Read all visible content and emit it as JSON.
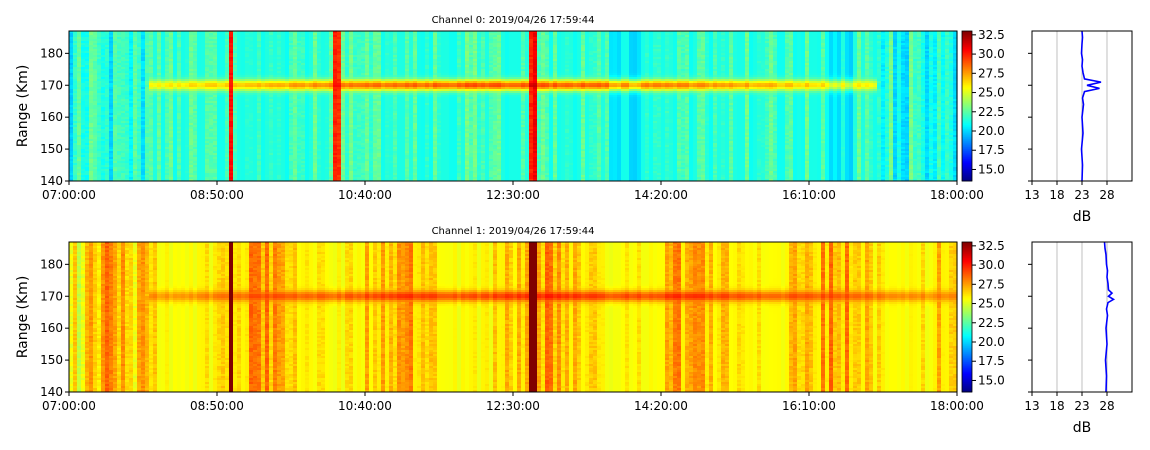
{
  "chart_data": [
    {
      "type": "heatmap",
      "title": "Channel 0: 2019/04/26 17:59:44",
      "xlabel": "",
      "ylabel": "Range (Km)",
      "x_ticks": [
        "07:00:00",
        "08:50:00",
        "10:40:00",
        "12:30:00",
        "14:20:00",
        "16:10:00",
        "18:00:00"
      ],
      "xlim": [
        "07:00:00",
        "18:00:00"
      ],
      "ylim": [
        140,
        187
      ],
      "y_ticks": [
        140,
        150,
        160,
        170,
        180
      ],
      "colorbar": {
        "ticks": [
          "15.0",
          "17.5",
          "20.0",
          "22.5",
          "25.0",
          "27.5",
          "30.0",
          "32.5"
        ],
        "range": [
          13.5,
          33.0
        ],
        "colormap": "jet"
      },
      "background_level_db": 21.5,
      "echo_layer": {
        "range_km": 170,
        "peak_db": 29,
        "time_span": [
          "08:00:00",
          "17:00:00"
        ]
      },
      "strong_columns": [
        "09:00:00",
        "10:20:00",
        "12:45:00"
      ],
      "weak_columns": [
        "13:45:00",
        "14:00:00",
        "16:30:00",
        "16:40:00"
      ]
    },
    {
      "type": "line",
      "title": "",
      "xlabel": "dB",
      "ylabel": "",
      "x_ticks": [
        13,
        18,
        23,
        28
      ],
      "xlim": [
        13,
        33
      ],
      "ylim": [
        140,
        187
      ],
      "grid": true,
      "series": [
        {
          "color": "#0000ff",
          "x": [
            23.0,
            23.1,
            22.9,
            23.2,
            23.0,
            23.3,
            23.1,
            23.5,
            26.5,
            24.0,
            26.8,
            23.5,
            23.2,
            23.0,
            23.1,
            22.9,
            23.0,
            23.1,
            23.0
          ],
          "y": [
            140,
            145,
            150,
            155,
            160,
            164,
            166,
            168,
            169,
            170,
            171,
            172,
            174,
            176,
            178,
            180,
            183,
            185,
            187
          ]
        }
      ]
    },
    {
      "type": "heatmap",
      "title": "Channel 1: 2019/04/26 17:59:44",
      "xlabel": "",
      "ylabel": "Range (Km)",
      "x_ticks": [
        "07:00:00",
        "08:50:00",
        "10:40:00",
        "12:30:00",
        "14:20:00",
        "16:10:00",
        "18:00:00"
      ],
      "xlim": [
        "07:00:00",
        "18:00:00"
      ],
      "ylim": [
        140,
        187
      ],
      "y_ticks": [
        140,
        150,
        160,
        170,
        180
      ],
      "colorbar": {
        "ticks": [
          "15.0",
          "17.5",
          "20.0",
          "22.5",
          "25.0",
          "27.5",
          "30.0",
          "32.5"
        ],
        "range": [
          13.5,
          33.0
        ],
        "colormap": "jet"
      },
      "background_level_db": 26.0,
      "echo_layer": {
        "range_km": 170,
        "peak_db": 29.5,
        "time_span": [
          "08:00:00",
          "18:00:00"
        ]
      },
      "strong_columns": [
        "09:00:00",
        "12:45:00"
      ],
      "weak_columns": []
    },
    {
      "type": "line",
      "title": "",
      "xlabel": "dB",
      "ylabel": "",
      "x_ticks": [
        13,
        18,
        23,
        28
      ],
      "xlim": [
        13,
        33
      ],
      "ylim": [
        140,
        187
      ],
      "grid": true,
      "series": [
        {
          "color": "#0000ff",
          "x": [
            27.8,
            27.9,
            27.7,
            28.0,
            27.8,
            28.1,
            27.9,
            28.2,
            29.3,
            28.3,
            29.0,
            28.3,
            28.2,
            28.0,
            28.1,
            27.9,
            27.8,
            27.6,
            27.5
          ],
          "y": [
            140,
            145,
            150,
            155,
            160,
            164,
            166,
            168,
            169,
            170,
            171,
            172,
            174,
            176,
            178,
            180,
            183,
            185,
            187
          ]
        }
      ]
    }
  ]
}
